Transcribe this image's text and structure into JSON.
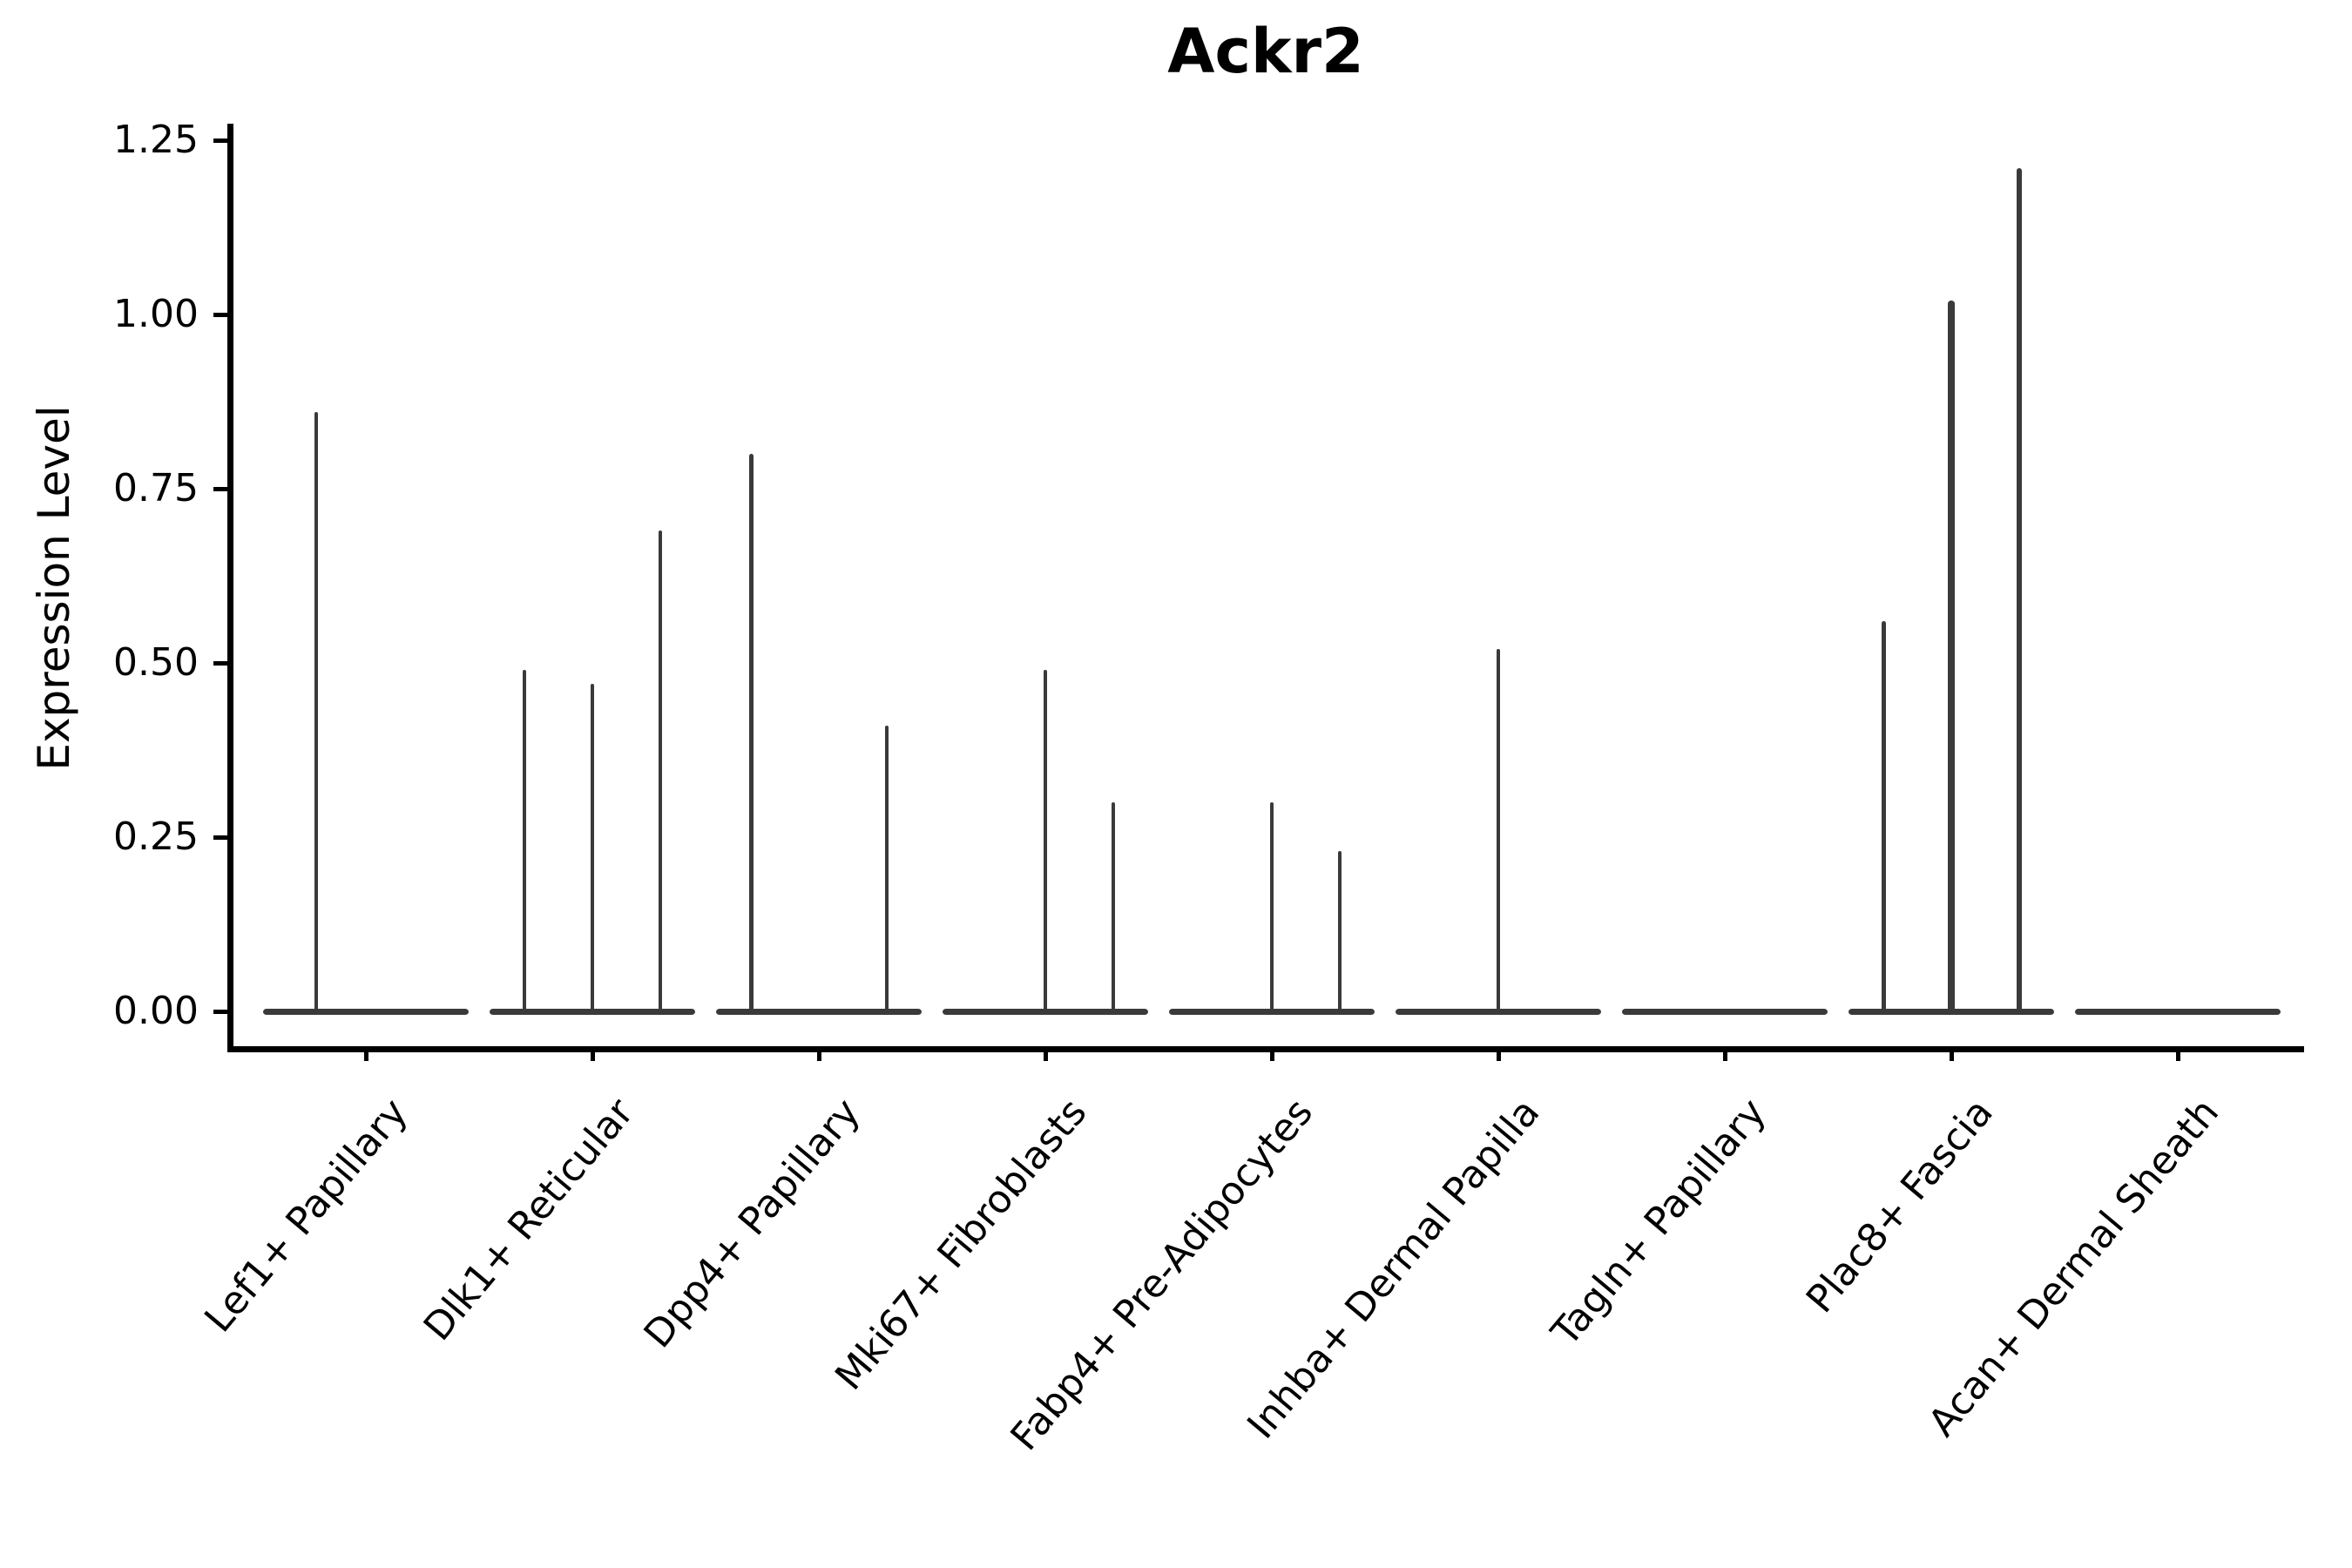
{
  "chart_data": {
    "type": "violin",
    "title": "Ackr2",
    "ylabel": "Expression Level",
    "xlabel": "",
    "grid": false,
    "legend": null,
    "background": "#ffffff",
    "ytick_labels": [
      "0.00",
      "0.25",
      "0.50",
      "0.75",
      "1.00",
      "1.25"
    ],
    "ytick_values": [
      0,
      0.25,
      0.5,
      0.75,
      1.0,
      1.25
    ],
    "ylim": [
      -0.06,
      1.27
    ],
    "categories": [
      "Lef1+ Papillary",
      "Dlk1+ Reticular",
      "Dpp4+ Papillary",
      "Mki67+ Fibroblasts",
      "Fabp4+ Pre-Adipocytes",
      "Inhba+ Dermal Papilla",
      "Tagln+ Papillary",
      "Plac8+ Fascia",
      "Acan+ Dermal Sheath"
    ],
    "violins": [
      {
        "category": "Lef1+ Papillary",
        "base_value": 0,
        "spikes": [
          {
            "value": 0.86,
            "offset": -0.22,
            "w": 4.5
          }
        ]
      },
      {
        "category": "Dlk1+ Reticular",
        "base_value": 0,
        "spikes": [
          {
            "value": 0.49,
            "offset": -0.3,
            "w": 4.5
          },
          {
            "value": 0.47,
            "offset": 0.0,
            "w": 4.5
          },
          {
            "value": 0.69,
            "offset": 0.3,
            "w": 4.5
          }
        ]
      },
      {
        "category": "Dpp4+ Papillary",
        "base_value": 0,
        "spikes": [
          {
            "value": 0.8,
            "offset": -0.3,
            "w": 5
          },
          {
            "value": 0.41,
            "offset": 0.3,
            "w": 4.5
          }
        ]
      },
      {
        "category": "Mki67+ Fibroblasts",
        "base_value": 0,
        "spikes": [
          {
            "value": 0.49,
            "offset": 0.0,
            "w": 4.5
          },
          {
            "value": 0.3,
            "offset": 0.3,
            "w": 4.5
          }
        ]
      },
      {
        "category": "Fabp4+ Pre-Adipocytes",
        "base_value": 0,
        "spikes": [
          {
            "value": 0.3,
            "offset": 0.0,
            "w": 4.5
          },
          {
            "value": 0.23,
            "offset": 0.3,
            "w": 4.5
          }
        ]
      },
      {
        "category": "Inhba+ Dermal Papilla",
        "base_value": 0,
        "spikes": [
          {
            "value": 0.52,
            "offset": 0.0,
            "w": 4.5
          }
        ]
      },
      {
        "category": "Tagln+ Papillary",
        "base_value": 0,
        "spikes": []
      },
      {
        "category": "Plac8+ Fascia",
        "base_value": 0,
        "spikes": [
          {
            "value": 0.56,
            "offset": -0.3,
            "w": 5
          },
          {
            "value": 1.02,
            "offset": 0.0,
            "w": 7.5
          },
          {
            "value": 1.21,
            "offset": 0.3,
            "w": 6.5
          }
        ]
      },
      {
        "category": "Acan+ Dermal Sheath",
        "base_value": 0,
        "spikes": []
      }
    ],
    "colors": {
      "violin": "#3a3a3a",
      "axis": "#000000",
      "text": "#000000"
    }
  }
}
